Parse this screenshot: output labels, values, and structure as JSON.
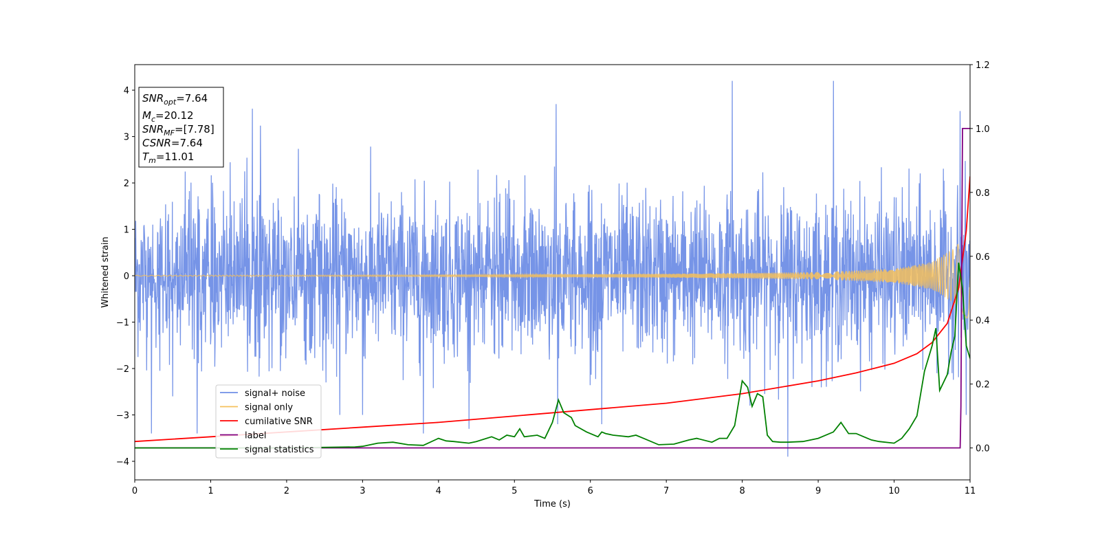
{
  "chart_data": {
    "type": "line",
    "xlabel": "Time (s)",
    "ylabel": "Whitened strain",
    "xlim": [
      0,
      11
    ],
    "ylim_left": [
      -4.4,
      4.55
    ],
    "ylim_right": [
      -0.1,
      1.2
    ],
    "x_ticks": [
      0,
      1,
      2,
      3,
      4,
      5,
      6,
      7,
      8,
      9,
      10,
      11
    ],
    "y_ticks_left": [
      -4,
      -3,
      -2,
      -1,
      0,
      1,
      2,
      3,
      4
    ],
    "y_ticks_right": [
      0.0,
      0.2,
      0.4,
      0.6,
      0.8,
      1.0,
      1.2
    ],
    "x_tick_labels": [
      "0",
      "1",
      "2",
      "3",
      "4",
      "5",
      "6",
      "7",
      "8",
      "9",
      "10",
      "11"
    ],
    "y_tick_labels_left": [
      "−4",
      "−3",
      "−2",
      "−1",
      "0",
      "1",
      "2",
      "3",
      "4"
    ],
    "y_tick_labels_right": [
      "0.0",
      "0.2",
      "0.4",
      "0.6",
      "0.8",
      "1.0",
      "1.2"
    ],
    "grid": false,
    "legend_position": "lower-left",
    "info_box": {
      "snr_opt_label": "SNR",
      "snr_opt_sub": "opt",
      "snr_opt_value": "=7.64",
      "mc_label": "M",
      "mc_sub": "c",
      "mc_value": "=20.12",
      "snr_mf_label": "SNR",
      "snr_mf_sub": "MF",
      "snr_mf_value": "=[7.78]",
      "csnr_label": "CSNR",
      "csnr_value": "=7.64",
      "tm_label": "T",
      "tm_sub": "m",
      "tm_value": "=11.01"
    },
    "series": [
      {
        "name": "signal+ noise",
        "axis": "left",
        "color": "#6f8ee6",
        "approx_envelope": [
          [
            0.0,
            -2.1,
            2.5
          ],
          [
            0.5,
            -2.5,
            2.8
          ],
          [
            1.0,
            -2.3,
            2.9
          ],
          [
            1.55,
            -2.6,
            3.6
          ],
          [
            2.0,
            -2.4,
            2.9
          ],
          [
            2.5,
            -2.6,
            2.8
          ],
          [
            3.0,
            -2.5,
            3.1
          ],
          [
            3.5,
            -2.6,
            2.9
          ],
          [
            4.0,
            -2.7,
            3.3
          ],
          [
            4.5,
            -2.5,
            3.2
          ],
          [
            5.0,
            -2.3,
            3.1
          ],
          [
            5.5,
            -2.6,
            3.7
          ],
          [
            6.0,
            -2.4,
            3.4
          ],
          [
            6.5,
            -2.6,
            3.2
          ],
          [
            7.0,
            -2.5,
            3.0
          ],
          [
            7.5,
            -2.7,
            3.3
          ],
          [
            7.87,
            -2.8,
            4.2
          ],
          [
            8.0,
            -2.5,
            3.3
          ],
          [
            8.6,
            -3.9,
            3.0
          ],
          [
            9.0,
            -2.4,
            3.1
          ],
          [
            9.2,
            -2.5,
            4.2
          ],
          [
            9.5,
            -2.6,
            3.2
          ],
          [
            10.0,
            -2.6,
            3.1
          ],
          [
            10.5,
            -2.4,
            3.0
          ],
          [
            10.85,
            -2.5,
            3.6
          ],
          [
            11.0,
            -2.7,
            2.6
          ]
        ],
        "spikes": [
          [
            0.22,
            -3.4
          ],
          [
            0.5,
            -2.6
          ],
          [
            0.82,
            -3.4
          ],
          [
            1.55,
            3.6
          ],
          [
            2.7,
            -3.0
          ],
          [
            3.0,
            -3.0
          ],
          [
            3.8,
            -3.4
          ],
          [
            4.4,
            -3.3
          ],
          [
            5.55,
            3.7
          ],
          [
            5.57,
            -3.2
          ],
          [
            6.15,
            -3.2
          ],
          [
            7.87,
            4.2
          ],
          [
            8.1,
            -2.8
          ],
          [
            8.6,
            -3.9
          ],
          [
            9.2,
            4.2
          ],
          [
            10.87,
            3.55
          ],
          [
            10.95,
            -3.0
          ]
        ]
      },
      {
        "name": "signal only",
        "axis": "left",
        "color": "#f5c05c",
        "amplitude_profile": [
          [
            0.0,
            0.01
          ],
          [
            4.0,
            0.02
          ],
          [
            7.0,
            0.04
          ],
          [
            9.0,
            0.08
          ],
          [
            10.0,
            0.15
          ],
          [
            10.5,
            0.3
          ],
          [
            10.8,
            0.6
          ],
          [
            11.0,
            1.0
          ]
        ]
      },
      {
        "name": "cumilative SNR",
        "axis": "right",
        "color": "#ff0000",
        "x": [
          0,
          1,
          2,
          3,
          4,
          5,
          6,
          7,
          8,
          9,
          9.5,
          10,
          10.3,
          10.5,
          10.7,
          10.85,
          10.95,
          11.0
        ],
        "y": [
          0.02,
          0.035,
          0.05,
          0.065,
          0.08,
          0.1,
          0.12,
          0.14,
          0.17,
          0.21,
          0.235,
          0.265,
          0.295,
          0.33,
          0.39,
          0.5,
          0.68,
          0.85
        ]
      },
      {
        "name": "label",
        "axis": "right",
        "color": "#800080",
        "x": [
          0,
          10.87,
          10.88,
          10.9,
          10.92,
          11.0
        ],
        "y": [
          0.0,
          0.0,
          0.13,
          1.0,
          1.0,
          1.0
        ]
      },
      {
        "name": "signal statistics",
        "axis": "right",
        "color": "#008000",
        "x": [
          0,
          1,
          2,
          2.9,
          3.0,
          3.2,
          3.4,
          3.6,
          3.8,
          4.0,
          4.1,
          4.2,
          4.4,
          4.5,
          4.7,
          4.8,
          4.9,
          5.0,
          5.07,
          5.13,
          5.3,
          5.4,
          5.5,
          5.58,
          5.65,
          5.75,
          5.8,
          5.95,
          6.1,
          6.15,
          6.2,
          6.3,
          6.5,
          6.6,
          6.7,
          6.9,
          7.1,
          7.3,
          7.4,
          7.6,
          7.7,
          7.8,
          7.9,
          8.0,
          8.07,
          8.13,
          8.2,
          8.27,
          8.33,
          8.4,
          8.5,
          8.6,
          8.8,
          9.0,
          9.2,
          9.3,
          9.4,
          9.5,
          9.6,
          9.7,
          9.8,
          10.0,
          10.1,
          10.2,
          10.3,
          10.4,
          10.5,
          10.55,
          10.6,
          10.7,
          10.75,
          10.8,
          10.85,
          10.9,
          10.95,
          11.0
        ],
        "y": [
          0.0,
          0.0,
          0.0,
          0.003,
          0.005,
          0.015,
          0.018,
          0.01,
          0.008,
          0.03,
          0.022,
          0.02,
          0.015,
          0.02,
          0.035,
          0.025,
          0.04,
          0.035,
          0.06,
          0.035,
          0.04,
          0.03,
          0.08,
          0.15,
          0.11,
          0.095,
          0.07,
          0.05,
          0.035,
          0.05,
          0.045,
          0.04,
          0.035,
          0.04,
          0.03,
          0.01,
          0.012,
          0.025,
          0.03,
          0.018,
          0.03,
          0.03,
          0.07,
          0.21,
          0.19,
          0.13,
          0.17,
          0.16,
          0.04,
          0.02,
          0.018,
          0.018,
          0.02,
          0.03,
          0.05,
          0.08,
          0.045,
          0.045,
          0.035,
          0.025,
          0.02,
          0.015,
          0.03,
          0.06,
          0.1,
          0.24,
          0.32,
          0.375,
          0.18,
          0.23,
          0.3,
          0.35,
          0.58,
          0.5,
          0.32,
          0.28
        ]
      }
    ]
  }
}
